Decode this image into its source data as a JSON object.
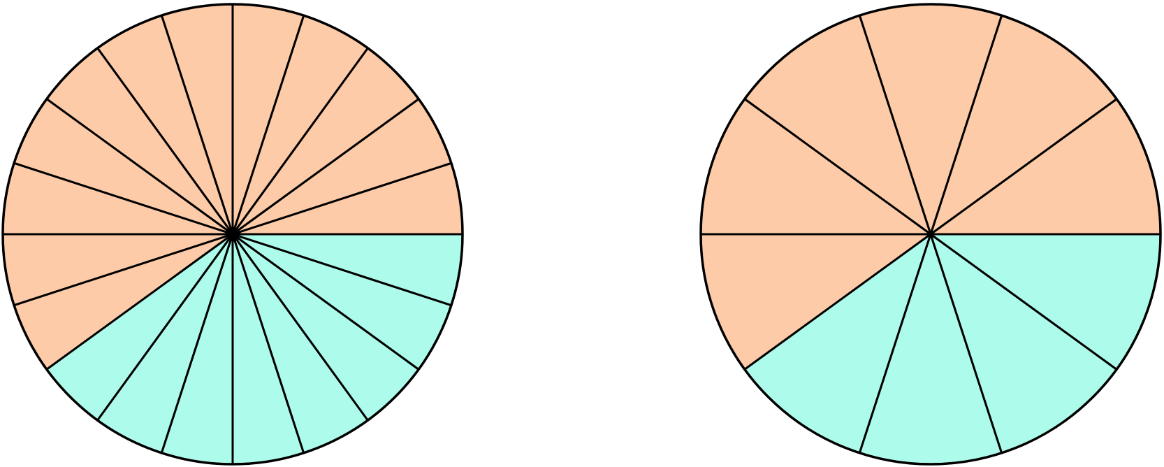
{
  "circles": [
    {
      "sectors": 20,
      "shaded": 12,
      "shaded_color": "#fdcba8",
      "other_color": "#adfceb"
    },
    {
      "sectors": 10,
      "shaded": 6,
      "shaded_color": "#fdcba8",
      "other_color": "#adfceb"
    }
  ]
}
